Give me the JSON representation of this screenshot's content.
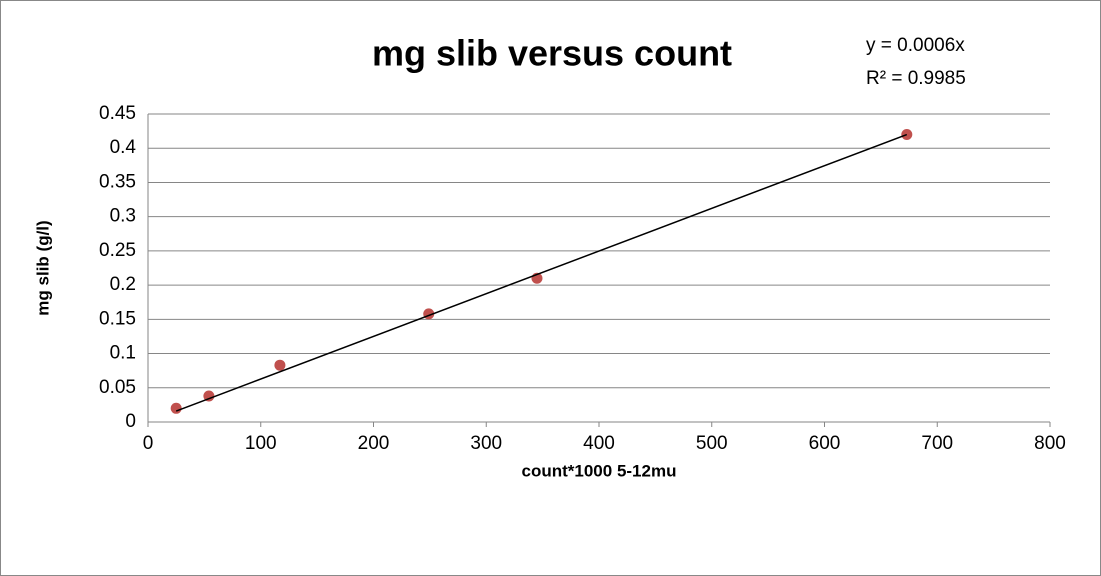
{
  "chart_data": {
    "type": "scatter",
    "title": "mg slib versus count",
    "x_label": "count*1000 5-12mu",
    "y_label": "mg slib (g/l)",
    "x": [
      25,
      54,
      117,
      249,
      345,
      673
    ],
    "values": [
      0.02,
      0.038,
      0.083,
      0.158,
      0.21,
      0.42
    ],
    "color": "#c0504d",
    "trendline": {
      "equation": "y = 0.0006x",
      "r_squared": "R² = 0.9985",
      "x": [
        25,
        673
      ],
      "values": [
        0.016,
        0.42
      ],
      "color": "#000000"
    },
    "xlim": [
      0,
      800
    ],
    "xticks": [
      0,
      100,
      200,
      300,
      400,
      500,
      600,
      700,
      800
    ],
    "ylim": [
      0,
      0.45
    ],
    "yticks": [
      0,
      0.05,
      0.1,
      0.15,
      0.2,
      0.25,
      0.3,
      0.35,
      0.4,
      0.45
    ],
    "grid": true
  }
}
